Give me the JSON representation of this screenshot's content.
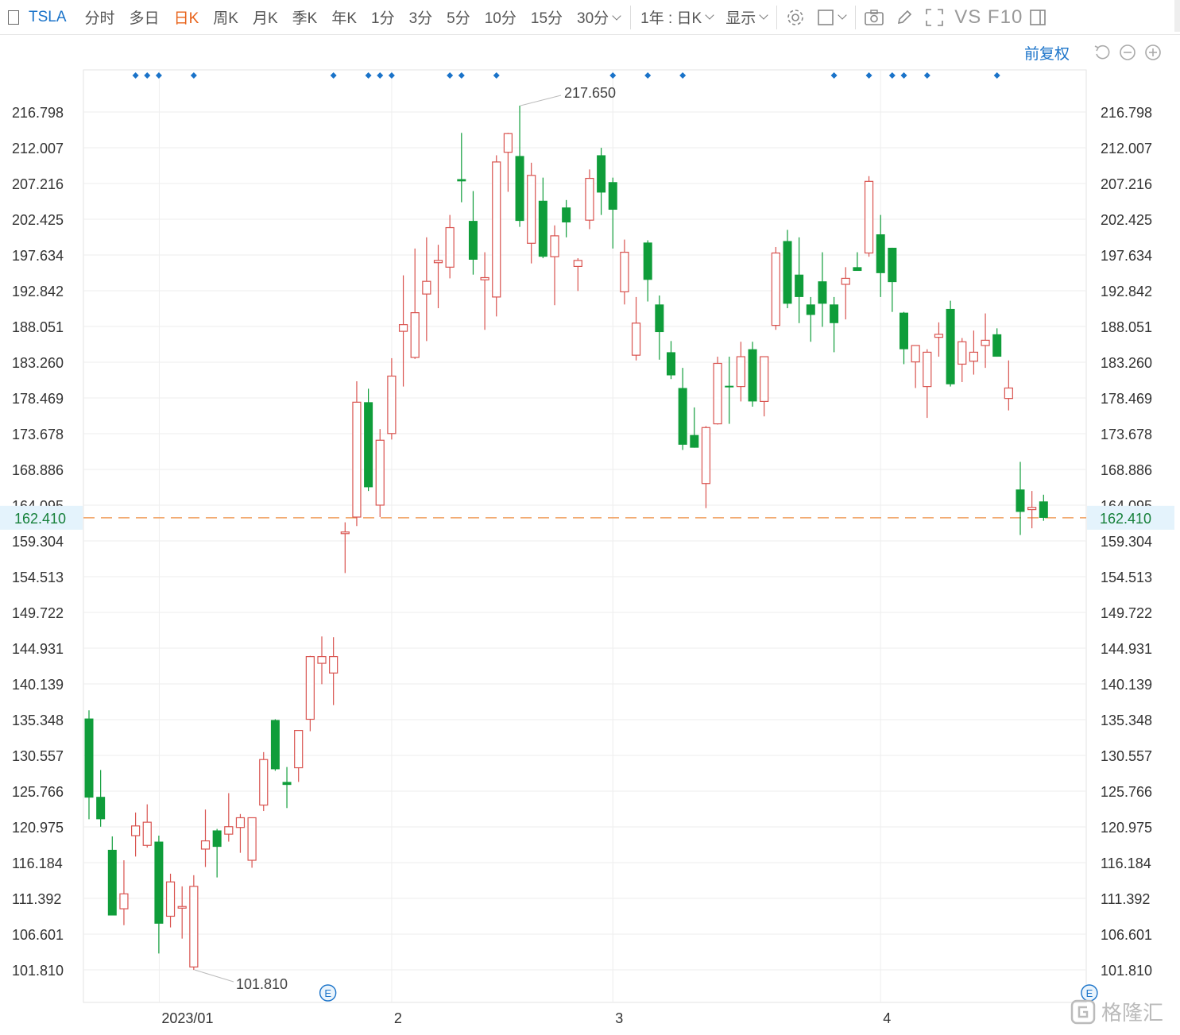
{
  "toolbar": {
    "symbol": "TSLA",
    "periods": [
      "分时",
      "多日",
      "日K",
      "周K",
      "月K",
      "季K",
      "年K",
      "1分",
      "3分",
      "5分",
      "10分",
      "15分",
      "30分"
    ],
    "active_period": "日K",
    "range_label": "1年 : 日K",
    "display_label": "显示",
    "vs_label": "VS F10",
    "fq_label": "前复权"
  },
  "colors": {
    "up": "#d9534f",
    "down": "#0f9d3a",
    "accent": "#1a73c9",
    "current_line": "#f0a060",
    "active_tab": "#e8631a"
  },
  "chart_data": {
    "type": "candlestick",
    "symbol": "TSLA",
    "y_ticks": [
      "216.798",
      "212.007",
      "207.216",
      "202.425",
      "197.634",
      "192.842",
      "188.051",
      "183.260",
      "178.469",
      "173.678",
      "168.886",
      "164.095",
      "159.304",
      "154.513",
      "149.722",
      "144.931",
      "140.139",
      "135.348",
      "130.557",
      "125.766",
      "120.975",
      "116.184",
      "111.392",
      "106.601",
      "101.810"
    ],
    "ylim": [
      98.5,
      222.5
    ],
    "x_labels": [
      {
        "index": 6,
        "label": "2023/01"
      },
      {
        "index": 26,
        "label": "2"
      },
      {
        "index": 45,
        "label": "3"
      },
      {
        "index": 68,
        "label": "4"
      }
    ],
    "current_price": "162.410",
    "max_label": {
      "index": 37,
      "value": "217.650"
    },
    "min_label": {
      "index": 9,
      "value": "101.810"
    },
    "event_markers": [
      21,
      86
    ],
    "event_label": "E",
    "dividend_markers": [
      4,
      5,
      6,
      9,
      21,
      24,
      25,
      26,
      31,
      32,
      35,
      45,
      48,
      51,
      64,
      67,
      69,
      70,
      72,
      78
    ],
    "candles": [
      {
        "o": 135.5,
        "h": 136.6,
        "l": 122.0,
        "c": 124.9
      },
      {
        "o": 125.0,
        "h": 128.6,
        "l": 121.0,
        "c": 122.0
      },
      {
        "o": 117.9,
        "h": 119.7,
        "l": 109.4,
        "c": 109.1
      },
      {
        "o": 110.0,
        "h": 116.5,
        "l": 107.8,
        "c": 112.0
      },
      {
        "o": 119.8,
        "h": 122.9,
        "l": 117.0,
        "c": 121.1
      },
      {
        "o": 118.5,
        "h": 124.0,
        "l": 118.2,
        "c": 121.6
      },
      {
        "o": 119.0,
        "h": 119.8,
        "l": 104.0,
        "c": 108.0
      },
      {
        "o": 109.0,
        "h": 114.7,
        "l": 107.5,
        "c": 113.6
      },
      {
        "o": 110.3,
        "h": 113.0,
        "l": 106.0,
        "c": 110.3
      },
      {
        "o": 102.2,
        "h": 114.5,
        "l": 101.8,
        "c": 113.0
      },
      {
        "o": 118.0,
        "h": 123.3,
        "l": 115.6,
        "c": 119.1
      },
      {
        "o": 120.5,
        "h": 120.7,
        "l": 114.2,
        "c": 118.3
      },
      {
        "o": 120.0,
        "h": 125.5,
        "l": 119.0,
        "c": 121.0
      },
      {
        "o": 120.9,
        "h": 122.7,
        "l": 117.5,
        "c": 122.2
      },
      {
        "o": 116.5,
        "h": 122.2,
        "l": 115.5,
        "c": 122.2
      },
      {
        "o": 123.9,
        "h": 131.0,
        "l": 123.1,
        "c": 130.0
      },
      {
        "o": 135.3,
        "h": 135.4,
        "l": 128.5,
        "c": 128.7
      },
      {
        "o": 127.0,
        "h": 129.0,
        "l": 123.5,
        "c": 126.6
      },
      {
        "o": 128.9,
        "h": 133.9,
        "l": 127.0,
        "c": 133.9
      },
      {
        "o": 135.4,
        "h": 143.9,
        "l": 133.8,
        "c": 143.8
      },
      {
        "o": 142.9,
        "h": 146.5,
        "l": 140.1,
        "c": 143.8
      },
      {
        "o": 141.6,
        "h": 146.4,
        "l": 137.3,
        "c": 143.8
      },
      {
        "o": 160.3,
        "h": 161.8,
        "l": 155.0,
        "c": 160.5
      },
      {
        "o": 162.5,
        "h": 180.7,
        "l": 161.3,
        "c": 177.9
      },
      {
        "o": 177.9,
        "h": 179.7,
        "l": 166.0,
        "c": 166.5
      },
      {
        "o": 164.1,
        "h": 174.3,
        "l": 162.5,
        "c": 172.8
      },
      {
        "o": 173.7,
        "h": 183.8,
        "l": 172.9,
        "c": 181.4
      },
      {
        "o": 187.4,
        "h": 194.9,
        "l": 180.0,
        "c": 188.3
      },
      {
        "o": 183.9,
        "h": 198.5,
        "l": 183.7,
        "c": 189.9
      },
      {
        "o": 192.4,
        "h": 200.0,
        "l": 186.1,
        "c": 194.1
      },
      {
        "o": 196.6,
        "h": 199.0,
        "l": 190.5,
        "c": 196.9
      },
      {
        "o": 196.0,
        "h": 203.0,
        "l": 194.5,
        "c": 201.3
      },
      {
        "o": 207.8,
        "h": 214.0,
        "l": 204.7,
        "c": 207.5
      },
      {
        "o": 202.2,
        "h": 206.2,
        "l": 195.0,
        "c": 197.0
      },
      {
        "o": 194.3,
        "h": 198.0,
        "l": 187.6,
        "c": 194.6
      },
      {
        "o": 192.0,
        "h": 211.0,
        "l": 189.4,
        "c": 210.1
      },
      {
        "o": 211.4,
        "h": 214.0,
        "l": 206.1,
        "c": 213.9
      },
      {
        "o": 210.9,
        "h": 217.65,
        "l": 201.4,
        "c": 202.2
      },
      {
        "o": 199.2,
        "h": 210.0,
        "l": 196.5,
        "c": 208.3
      },
      {
        "o": 204.9,
        "h": 208.0,
        "l": 197.2,
        "c": 197.4
      },
      {
        "o": 197.4,
        "h": 201.6,
        "l": 190.9,
        "c": 200.2
      },
      {
        "o": 204.0,
        "h": 205.0,
        "l": 200.0,
        "c": 202.0
      },
      {
        "o": 196.1,
        "h": 197.2,
        "l": 192.8,
        "c": 196.9
      },
      {
        "o": 202.3,
        "h": 209.1,
        "l": 201.1,
        "c": 207.9
      },
      {
        "o": 211.0,
        "h": 212.0,
        "l": 203.0,
        "c": 206.0
      },
      {
        "o": 207.4,
        "h": 208.0,
        "l": 198.5,
        "c": 203.7
      },
      {
        "o": 192.7,
        "h": 199.7,
        "l": 191.0,
        "c": 198.0
      },
      {
        "o": 184.2,
        "h": 192.0,
        "l": 183.5,
        "c": 188.5
      },
      {
        "o": 199.3,
        "h": 199.6,
        "l": 191.4,
        "c": 194.3
      },
      {
        "o": 191.0,
        "h": 192.2,
        "l": 183.6,
        "c": 187.3
      },
      {
        "o": 184.6,
        "h": 186.1,
        "l": 181.0,
        "c": 181.5
      },
      {
        "o": 179.8,
        "h": 182.5,
        "l": 171.5,
        "c": 172.2
      },
      {
        "o": 173.5,
        "h": 177.2,
        "l": 171.8,
        "c": 171.8
      },
      {
        "o": 167.0,
        "h": 174.7,
        "l": 163.7,
        "c": 174.5
      },
      {
        "o": 175.0,
        "h": 184.0,
        "l": 174.9,
        "c": 183.1
      },
      {
        "o": 180.1,
        "h": 184.0,
        "l": 175.0,
        "c": 180.0
      },
      {
        "o": 180.0,
        "h": 186.0,
        "l": 178.0,
        "c": 184.0
      },
      {
        "o": 185.0,
        "h": 186.0,
        "l": 177.3,
        "c": 178.0
      },
      {
        "o": 178.0,
        "h": 183.5,
        "l": 176.0,
        "c": 184.0
      },
      {
        "o": 188.2,
        "h": 198.7,
        "l": 187.6,
        "c": 197.9
      },
      {
        "o": 199.5,
        "h": 201.0,
        "l": 190.5,
        "c": 191.1
      },
      {
        "o": 195.0,
        "h": 200.0,
        "l": 188.5,
        "c": 192.0
      },
      {
        "o": 191.0,
        "h": 192.0,
        "l": 186.0,
        "c": 189.6
      },
      {
        "o": 194.1,
        "h": 198.0,
        "l": 188.0,
        "c": 191.1
      },
      {
        "o": 191.0,
        "h": 192.0,
        "l": 184.6,
        "c": 188.5
      },
      {
        "o": 193.7,
        "h": 196.0,
        "l": 189.0,
        "c": 194.5
      },
      {
        "o": 196.0,
        "h": 198.0,
        "l": 195.8,
        "c": 195.5
      },
      {
        "o": 197.9,
        "h": 208.2,
        "l": 197.4,
        "c": 207.5
      },
      {
        "o": 200.4,
        "h": 203.0,
        "l": 192.0,
        "c": 195.2
      },
      {
        "o": 198.6,
        "h": 198.6,
        "l": 190.0,
        "c": 194.0
      },
      {
        "o": 189.9,
        "h": 190.0,
        "l": 183.0,
        "c": 185.0
      },
      {
        "o": 183.3,
        "h": 185.0,
        "l": 179.8,
        "c": 185.5
      },
      {
        "o": 180.0,
        "h": 185.0,
        "l": 175.8,
        "c": 184.6
      },
      {
        "o": 186.6,
        "h": 188.6,
        "l": 184.0,
        "c": 187.0
      },
      {
        "o": 190.4,
        "h": 191.5,
        "l": 180.0,
        "c": 180.3
      },
      {
        "o": 183.0,
        "h": 186.5,
        "l": 180.6,
        "c": 186.0
      },
      {
        "o": 183.4,
        "h": 187.5,
        "l": 181.6,
        "c": 184.6
      },
      {
        "o": 185.5,
        "h": 189.8,
        "l": 182.5,
        "c": 186.2
      },
      {
        "o": 187.0,
        "h": 187.8,
        "l": 184.0,
        "c": 184.0
      },
      {
        "o": 178.4,
        "h": 183.5,
        "l": 176.8,
        "c": 179.8
      },
      {
        "o": 166.2,
        "h": 169.9,
        "l": 160.1,
        "c": 163.2
      },
      {
        "o": 163.5,
        "h": 166.0,
        "l": 161.0,
        "c": 163.8
      },
      {
        "o": 164.6,
        "h": 165.5,
        "l": 162.0,
        "c": 162.4
      }
    ]
  }
}
